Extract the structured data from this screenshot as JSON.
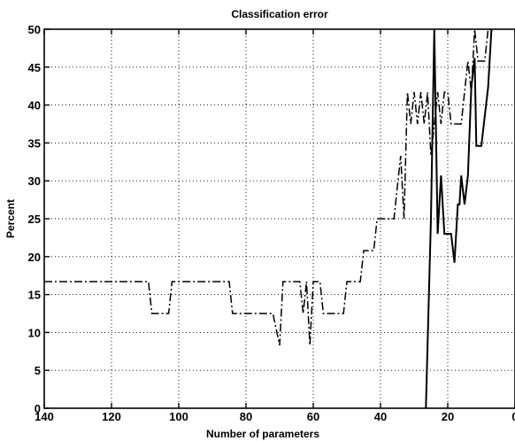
{
  "chart_data": {
    "type": "line",
    "title": "Classification error",
    "xlabel": "Number of parameters",
    "ylabel": "Percent",
    "xlim": [
      140,
      0
    ],
    "ylim": [
      0,
      50
    ],
    "x_reversed": true,
    "grid": true,
    "x_ticks": [
      140,
      120,
      100,
      80,
      60,
      40,
      20,
      0
    ],
    "x_tick_labels": [
      "140",
      "120",
      "100",
      "80",
      "60",
      "40",
      "20",
      "0"
    ],
    "y_ticks": [
      0,
      5,
      10,
      15,
      20,
      25,
      30,
      35,
      40,
      45,
      50
    ],
    "y_tick_labels": [
      "0",
      "5",
      "10",
      "15",
      "20",
      "25",
      "30",
      "35",
      "40",
      "45",
      "50"
    ],
    "series": [
      {
        "style": "dash-dot",
        "color": "#000000",
        "x": [
          140,
          109,
          108,
          103,
          102,
          85,
          84,
          72,
          71,
          70,
          69,
          67,
          64,
          63,
          62,
          61,
          60,
          59,
          58,
          57,
          56,
          51,
          50,
          47,
          46,
          45,
          44,
          42,
          41,
          37,
          36,
          34,
          33,
          32,
          31,
          30,
          29,
          28,
          27,
          26,
          25,
          24,
          23,
          22,
          21,
          20,
          19,
          18,
          17,
          16,
          15,
          14,
          13,
          12,
          11,
          10,
          9,
          8,
          7
        ],
        "y": [
          16.7,
          16.7,
          12.5,
          12.5,
          16.7,
          16.7,
          12.5,
          12.5,
          10.4,
          8.3,
          16.7,
          16.7,
          16.7,
          12.5,
          16.7,
          8.3,
          16.7,
          16.7,
          16.7,
          12.5,
          12.5,
          12.5,
          16.7,
          16.7,
          16.7,
          20.8,
          20.8,
          20.8,
          25,
          25,
          25,
          33.3,
          25,
          41.7,
          37.5,
          41.7,
          37.5,
          41.7,
          37.5,
          41.7,
          33.3,
          37.5,
          41.7,
          37.5,
          41.7,
          41.7,
          37.5,
          37.5,
          37.5,
          37.5,
          41.7,
          45.8,
          41.7,
          50,
          45.8,
          45.8,
          45.8,
          50,
          50
        ]
      },
      {
        "style": "solid",
        "color": "#000000",
        "x": [
          26.5,
          25,
          24,
          23,
          22,
          21,
          20,
          19,
          18,
          17,
          16.5,
          16,
          15,
          14,
          13,
          12,
          11.5,
          11,
          10,
          9,
          8,
          7
        ],
        "y": [
          0,
          25,
          50,
          23,
          30.7,
          23,
          23,
          23,
          19.2,
          26.9,
          26.9,
          30.7,
          26.9,
          30.7,
          42.3,
          46.2,
          34.6,
          34.6,
          34.6,
          38.5,
          42.3,
          50
        ]
      }
    ]
  }
}
